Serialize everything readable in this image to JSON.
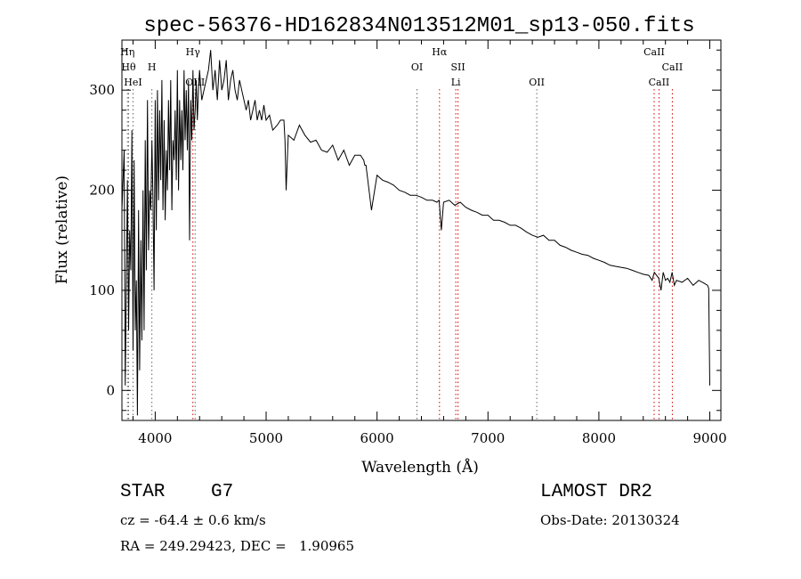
{
  "chart_data": {
    "type": "line",
    "title": "spec-56376-HD162834N013512M01_sp13-050.fits",
    "xlabel": "Wavelength (Å)",
    "ylabel": "Flux (relative)",
    "xlim": [
      3700,
      9100
    ],
    "ylim": [
      -30,
      350
    ],
    "xticks": [
      4000,
      5000,
      6000,
      7000,
      8000,
      9000
    ],
    "yticks": [
      0,
      100,
      200,
      300
    ],
    "grid": false,
    "series": [
      {
        "x": [
          3700,
          3720,
          3730,
          3750,
          3760,
          3770,
          3780,
          3790,
          3800,
          3810,
          3820,
          3830,
          3840,
          3850,
          3860,
          3870,
          3880,
          3890,
          3900,
          3910,
          3920,
          3930,
          3940,
          3950,
          3960,
          3970,
          3980,
          3990,
          4000,
          4010,
          4020,
          4030,
          4040,
          4050,
          4060,
          4070,
          4080,
          4090,
          4100,
          4110,
          4120,
          4130,
          4140,
          4150,
          4160,
          4170,
          4180,
          4190,
          4200,
          4210,
          4220,
          4230,
          4240,
          4250,
          4260,
          4270,
          4280,
          4290,
          4300,
          4310,
          4320,
          4330,
          4340,
          4350,
          4360,
          4370,
          4380,
          4390,
          4400,
          4420,
          4440,
          4460,
          4480,
          4500,
          4520,
          4540,
          4560,
          4580,
          4600,
          4620,
          4640,
          4660,
          4680,
          4700,
          4720,
          4740,
          4760,
          4780,
          4800,
          4820,
          4840,
          4860,
          4880,
          4900,
          4920,
          4940,
          4960,
          4980,
          5000,
          5030,
          5060,
          5100,
          5130,
          5160,
          5170,
          5180,
          5200,
          5250,
          5300,
          5350,
          5400,
          5450,
          5500,
          5550,
          5600,
          5650,
          5700,
          5750,
          5800,
          5850,
          5880,
          5890,
          5900,
          5950,
          6000,
          6050,
          6100,
          6150,
          6200,
          6250,
          6300,
          6350,
          6400,
          6450,
          6500,
          6540,
          6560,
          6580,
          6600,
          6650,
          6700,
          6750,
          6800,
          6850,
          6900,
          6950,
          7000,
          7050,
          7100,
          7150,
          7200,
          7250,
          7300,
          7350,
          7400,
          7450,
          7500,
          7550,
          7600,
          7650,
          7700,
          7750,
          7800,
          7850,
          7900,
          7950,
          8000,
          8050,
          8100,
          8150,
          8200,
          8250,
          8300,
          8350,
          8400,
          8450,
          8480,
          8500,
          8520,
          8540,
          8560,
          8580,
          8600,
          8620,
          8640,
          8660,
          8680,
          8700,
          8750,
          8800,
          8850,
          8900,
          8950,
          8980,
          8990,
          9000
        ],
        "y": [
          180,
          240,
          5,
          210,
          60,
          160,
          120,
          260,
          40,
          230,
          60,
          110,
          -25,
          180,
          20,
          150,
          50,
          200,
          60,
          250,
          120,
          290,
          140,
          200,
          180,
          250,
          190,
          100,
          290,
          160,
          300,
          190,
          280,
          210,
          310,
          180,
          270,
          170,
          240,
          200,
          290,
          220,
          310,
          180,
          250,
          230,
          280,
          210,
          320,
          200,
          290,
          230,
          280,
          220,
          320,
          250,
          300,
          240,
          310,
          150,
          290,
          250,
          320,
          260,
          280,
          310,
          270,
          300,
          320,
          290,
          300,
          310,
          320,
          340,
          300,
          320,
          290,
          330,
          300,
          310,
          330,
          290,
          310,
          320,
          300,
          290,
          310,
          300,
          290,
          280,
          290,
          270,
          280,
          290,
          270,
          280,
          270,
          285,
          270,
          275,
          260,
          265,
          270,
          270,
          250,
          200,
          255,
          250,
          265,
          255,
          248,
          250,
          240,
          238,
          245,
          230,
          240,
          225,
          235,
          235,
          230,
          225,
          225,
          180,
          215,
          210,
          208,
          205,
          200,
          198,
          195,
          195,
          193,
          190,
          190,
          188,
          190,
          160,
          188,
          190,
          185,
          188,
          183,
          180,
          178,
          175,
          175,
          170,
          170,
          168,
          165,
          165,
          162,
          158,
          155,
          153,
          155,
          150,
          150,
          145,
          143,
          140,
          138,
          136,
          135,
          132,
          130,
          128,
          125,
          124,
          123,
          122,
          120,
          118,
          116,
          115,
          110,
          118,
          115,
          112,
          100,
          118,
          110,
          112,
          108,
          118,
          105,
          110,
          108,
          112,
          105,
          110,
          107,
          105,
          102,
          5
        ]
      }
    ],
    "line_markers": [
      {
        "wavelength": 3750,
        "label": "Hη"
      },
      {
        "wavelength": 3760,
        "label": "Hθ"
      },
      {
        "wavelength": 3800,
        "label": "HeI"
      },
      {
        "wavelength": 3970,
        "label": "H"
      },
      {
        "wavelength": 4340,
        "label": "Hγ"
      },
      {
        "wavelength": 4360,
        "label": "OIII"
      },
      {
        "wavelength": 6360,
        "label": "OI"
      },
      {
        "wavelength": 6563,
        "label": "Hα"
      },
      {
        "wavelength": 6710,
        "label": "Li"
      },
      {
        "wavelength": 6730,
        "label": "SII"
      },
      {
        "wavelength": 7440,
        "label": "OII"
      },
      {
        "wavelength": 8498,
        "label": "CaII"
      },
      {
        "wavelength": 8542,
        "label": "CaII"
      },
      {
        "wavelength": 8662,
        "label": "CaII"
      }
    ],
    "marker_colors": {
      "dotted_black": "#666666",
      "dotted_red": "#d40000"
    }
  },
  "info": {
    "object_class": "STAR",
    "subclass": "G7",
    "survey": "LAMOST DR2",
    "redshift": "cz = -64.4 ± 0.6 km/s",
    "obs_date": "Obs-Date: 20130324",
    "coords": "RA = 249.29423, DEC =   1.90965"
  }
}
